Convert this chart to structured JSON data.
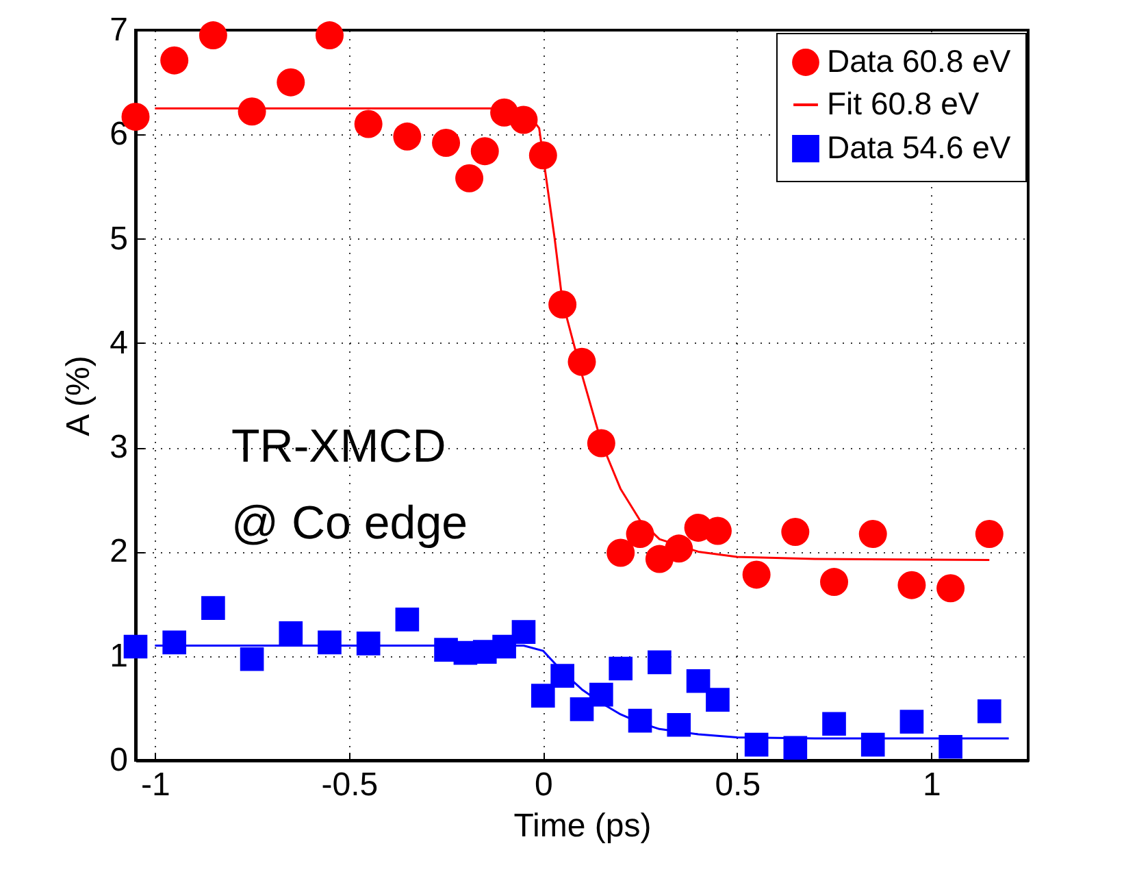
{
  "chart_data": {
    "type": "scatter",
    "xlabel": "Time (ps)",
    "ylabel": "A (%)",
    "xlim": [
      -1.05,
      1.25
    ],
    "xticks": [
      -1,
      -0.5,
      0,
      0.5,
      1
    ],
    "ylim": [
      0,
      7
    ],
    "yticks": [
      0,
      1,
      2,
      3,
      4,
      5,
      6,
      7
    ],
    "grid": true,
    "legend": "top right",
    "annotations": [
      "TR-XMCD",
      "@ Co edge"
    ],
    "series": [
      {
        "name": "Data 60.8 eV",
        "marker": "circle",
        "color": "#ff0000",
        "x": [
          -1.05,
          -0.95,
          -0.85,
          -0.75,
          -0.65,
          -0.55,
          -0.45,
          -0.35,
          -0.25,
          -0.19,
          -0.15,
          -0.1,
          -0.05,
          0,
          0.05,
          0.1,
          0.15,
          0.2,
          0.25,
          0.3,
          0.35,
          0.4,
          0.45,
          0.55,
          0.65,
          0.75,
          0.85,
          0.95,
          1.05,
          1.15
        ],
        "values": [
          6.17,
          6.71,
          6.95,
          6.22,
          6.5,
          6.95,
          6.1,
          5.98,
          5.92,
          5.58,
          5.84,
          6.21,
          6.14,
          5.8,
          4.37,
          3.82,
          3.04,
          1.99,
          2.17,
          1.93,
          2.03,
          2.23,
          2.2,
          1.78,
          2.19,
          1.71,
          2.17,
          1.68,
          1.65,
          2.17
        ]
      },
      {
        "name": "Fit 60.8 eV",
        "type": "line",
        "marker": "none",
        "color": "#ff0000",
        "x": [
          -1,
          -0.05,
          -0.01,
          0.03,
          0.05,
          0.1,
          0.15,
          0.2,
          0.25,
          0.3,
          0.4,
          0.5,
          0.7,
          1.15
        ],
        "values": [
          6.25,
          6.25,
          6.06,
          5.0,
          4.4,
          3.7,
          3.05,
          2.6,
          2.3,
          2.12,
          2.0,
          1.95,
          1.93,
          1.92
        ]
      },
      {
        "name": "Data 54.6 eV",
        "marker": "square",
        "color": "#0000ff",
        "x": [
          -1.05,
          -0.95,
          -0.85,
          -0.75,
          -0.65,
          -0.55,
          -0.45,
          -0.35,
          -0.25,
          -0.2,
          -0.15,
          -0.1,
          -0.05,
          0,
          0.05,
          0.1,
          0.15,
          0.2,
          0.25,
          0.3,
          0.35,
          0.4,
          0.45,
          0.55,
          0.65,
          0.75,
          0.85,
          0.95,
          1.05,
          1.15
        ],
        "values": [
          1.09,
          1.13,
          1.46,
          0.97,
          1.22,
          1.13,
          1.12,
          1.35,
          1.06,
          1.03,
          1.04,
          1.09,
          1.23,
          0.62,
          0.81,
          0.49,
          0.63,
          0.88,
          0.38,
          0.94,
          0.34,
          0.76,
          0.58,
          0.15,
          0.12,
          0.35,
          0.15,
          0.37,
          0.13,
          0.47
        ]
      },
      {
        "type": "line",
        "marker": "none",
        "color": "#0000ff",
        "x": [
          -1,
          -0.05,
          0,
          0.05,
          0.1,
          0.15,
          0.2,
          0.25,
          0.3,
          0.4,
          0.5,
          0.7,
          1.2
        ],
        "values": [
          1.1,
          1.1,
          1.05,
          0.85,
          0.68,
          0.55,
          0.44,
          0.36,
          0.3,
          0.25,
          0.22,
          0.21,
          0.21
        ]
      }
    ]
  }
}
